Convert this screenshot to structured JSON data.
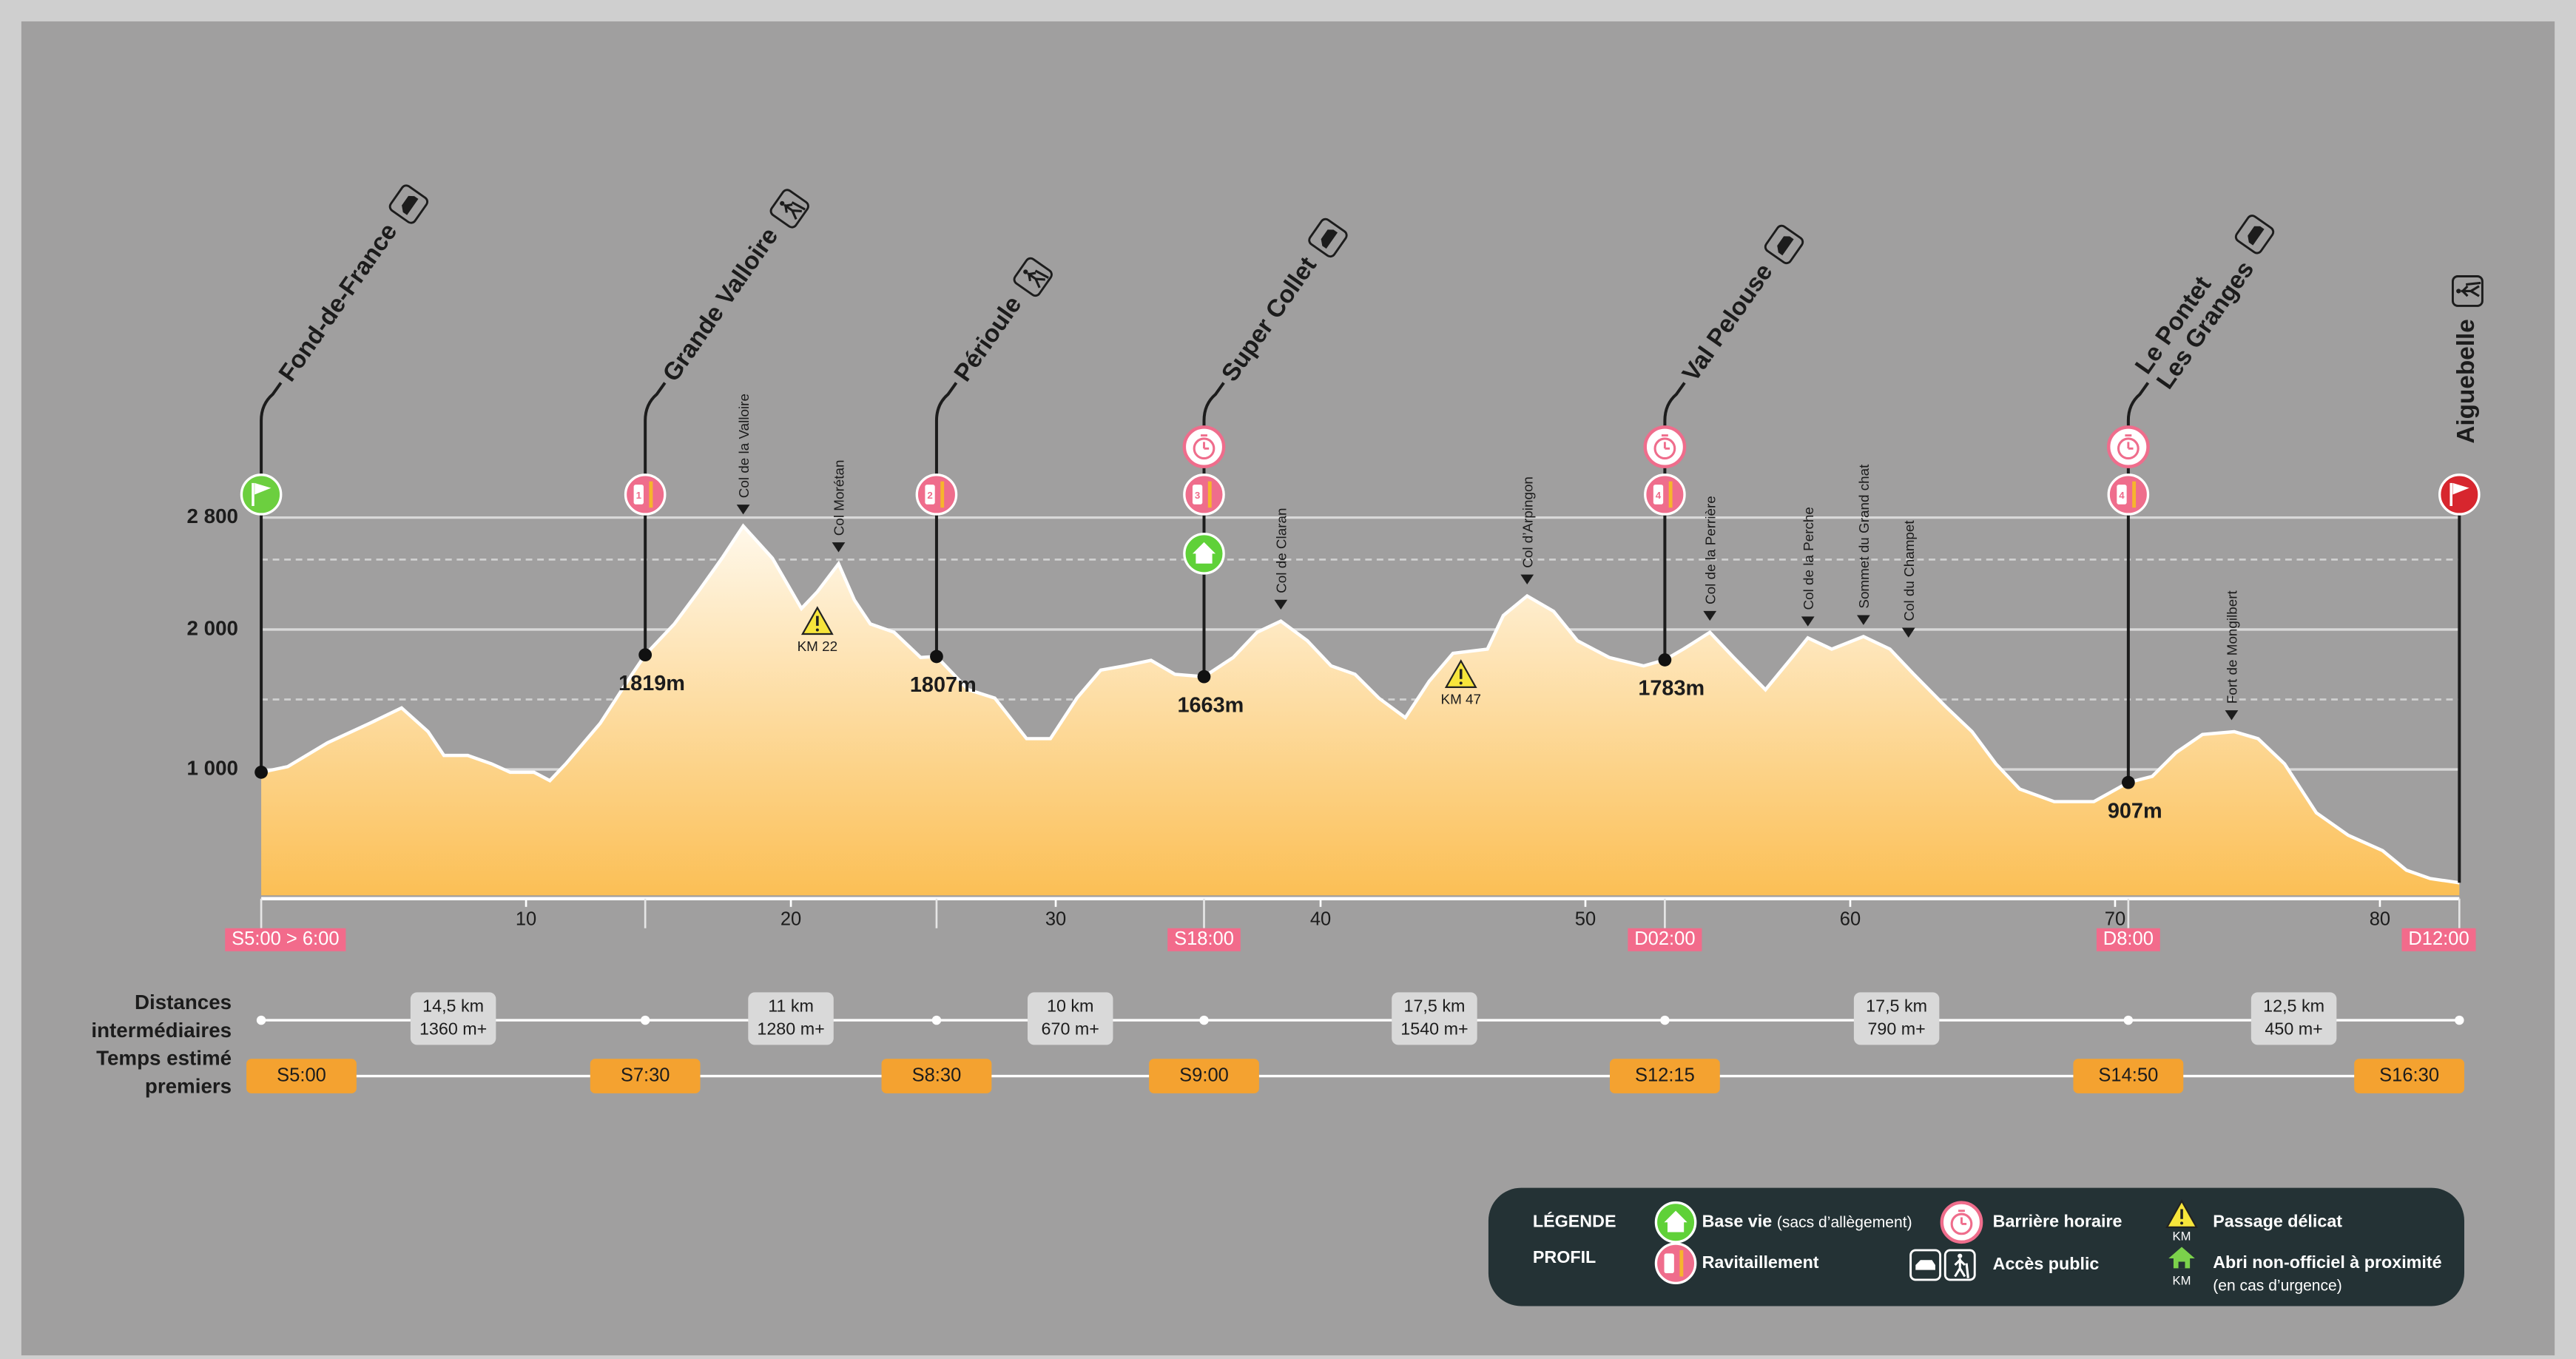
{
  "chart_data": {
    "type": "area",
    "x": [
      0,
      1.0,
      2.5,
      4.1,
      5.3,
      6.3,
      6.9,
      7.8,
      8.7,
      9.4,
      10.3,
      10.9,
      11.5,
      12.8,
      14.0,
      14.5,
      15.6,
      16.5,
      17.4,
      18.2,
      19.3,
      20.4,
      21.0,
      21.8,
      22.4,
      23.0,
      23.9,
      24.9,
      25.5,
      26.7,
      27.7,
      28.9,
      29.8,
      30.8,
      31.7,
      32.6,
      33.6,
      34.5,
      35.6,
      36.7,
      37.6,
      38.5,
      39.5,
      40.4,
      41.3,
      42.2,
      43.2,
      44.1,
      45.0,
      46.3,
      46.9,
      47.8,
      48.8,
      49.7,
      50.9,
      52.2,
      53.0,
      53.7,
      54.7,
      55.6,
      56.8,
      57.8,
      58.4,
      59.3,
      60.5,
      61.5,
      62.4,
      63.6,
      64.6,
      65.5,
      66.4,
      67.7,
      69.2,
      70.5,
      71.4,
      72.3,
      73.3,
      74.5,
      75.4,
      76.4,
      77.6,
      78.8,
      80.1,
      81.0,
      81.9,
      83.0
    ],
    "values": [
      980,
      1020,
      1190,
      1330,
      1440,
      1270,
      1100,
      1100,
      1040,
      980,
      980,
      920,
      1040,
      1330,
      1680,
      1819,
      2040,
      2270,
      2510,
      2740,
      2510,
      2150,
      2270,
      2470,
      2210,
      2040,
      1980,
      1800,
      1807,
      1570,
      1510,
      1220,
      1220,
      1510,
      1710,
      1740,
      1780,
      1680,
      1663,
      1800,
      1980,
      2060,
      1920,
      1740,
      1680,
      1510,
      1370,
      1630,
      1830,
      1860,
      2100,
      2240,
      2130,
      1920,
      1800,
      1740,
      1783,
      1860,
      1980,
      1800,
      1570,
      1800,
      1940,
      1860,
      1950,
      1860,
      1680,
      1450,
      1270,
      1040,
      860,
      770,
      770,
      907,
      950,
      1120,
      1250,
      1270,
      1220,
      1040,
      690,
      530,
      420,
      280,
      220,
      190
    ],
    "color": "#fbbf55",
    "xlim": [
      0,
      83
    ],
    "ylim": [
      100,
      3000
    ],
    "xticks": [
      10,
      20,
      30,
      40,
      50,
      60,
      70,
      80
    ],
    "yticks": [
      {
        "value": 1000,
        "label": "1 000"
      },
      {
        "value": 2000,
        "label": "2 000"
      },
      {
        "value": 2800,
        "label": "2 800"
      }
    ],
    "minor_yticks": [
      1500,
      2500
    ],
    "grid": true,
    "stations": [
      {
        "name": [
          "Fond-de-France"
        ],
        "x": 0,
        "y": 980,
        "icon": "start",
        "time": "S5:00 > 6:00",
        "access": "car"
      },
      {
        "name": [
          "Grande Valloire"
        ],
        "x": 14.5,
        "y": 1819,
        "y_label": "1819m",
        "icon": "ravito",
        "ravito": "1",
        "access": "walk"
      },
      {
        "name": [
          "Périoule"
        ],
        "x": 25.5,
        "y": 1807,
        "y_label": "1807m",
        "icon": "ravito",
        "ravito": "2",
        "access": "walk"
      },
      {
        "name": [
          "Super Collet"
        ],
        "x": 35.6,
        "y": 1663,
        "y_label": "1663m",
        "icon": "ravito",
        "ravito": "3",
        "cutoff": true,
        "base": true,
        "time": "S18:00",
        "access": "car"
      },
      {
        "name": [
          "Val Pelouse"
        ],
        "x": 53.0,
        "y": 1783,
        "y_label": "1783m",
        "icon": "ravito",
        "ravito": "4",
        "cutoff": true,
        "time": "D02:00",
        "access": "car"
      },
      {
        "name": [
          "Le Pontet",
          "Les Granges"
        ],
        "x": 70.5,
        "y": 907,
        "y_label": "907m",
        "icon": "ravito",
        "ravito": "4",
        "cutoff": true,
        "time": "D8:00",
        "access": "car"
      },
      {
        "name": [
          "Aiguebelle"
        ],
        "x": 83,
        "icon": "finish",
        "time": "D12:00",
        "access": "walk"
      }
    ],
    "summits": [
      {
        "name": "Col de la Valloire",
        "x": 18.2,
        "y": 2740
      },
      {
        "name": "Col Morétan",
        "x": 21.8,
        "y": 2470
      },
      {
        "name": "Col de Claran",
        "x": 38.5,
        "y": 2060
      },
      {
        "name": "Col d’Arpingon",
        "x": 47.8,
        "y": 2240
      },
      {
        "name": "Col de la Perrière",
        "x": 54.7,
        "y": 1980
      },
      {
        "name": "Col de la Perche",
        "x": 58.4,
        "y": 1940
      },
      {
        "name": "Sommet du Grand chat",
        "x": 60.5,
        "y": 1950
      },
      {
        "name": "Col du Champet",
        "x": 62.2,
        "y": 1860
      },
      {
        "name": "Fort de Mongilbert",
        "x": 74.4,
        "y": 1270
      }
    ],
    "warnings": [
      {
        "label": "KM 22",
        "x": 21.0,
        "y": 2050
      },
      {
        "label": "KM 47",
        "x": 45.3,
        "y": 1670
      }
    ],
    "row_labels": [
      [
        "Distances",
        "intermédiaires"
      ],
      [
        "Temps estimé",
        "premiers"
      ]
    ],
    "segments": [
      {
        "distance": "14,5 km",
        "gain": "1360 m+"
      },
      {
        "distance": "11 km",
        "gain": "1280 m+"
      },
      {
        "distance": "10 km",
        "gain": "670 m+"
      },
      {
        "distance": "17,5 km",
        "gain": "1540 m+"
      },
      {
        "distance": "17,5 km",
        "gain": "790 m+"
      },
      {
        "distance": "12,5 km",
        "gain": "450 m+"
      }
    ],
    "times": [
      "S5:00",
      "S7:30",
      "S8:30",
      "S9:00",
      "S12:15",
      "S14:50",
      "S16:30"
    ],
    "legend": {
      "title": [
        "LÉGENDE",
        "PROFIL"
      ],
      "items": [
        {
          "icon": "base",
          "label": "Base vie",
          "note": "(sacs d’allègement)"
        },
        {
          "icon": "ravito",
          "label": "Ravitaillement"
        },
        {
          "icon": "cutoff",
          "label": "Barrière horaire"
        },
        {
          "icon": "access",
          "label": "Accès public"
        },
        {
          "icon": "warning",
          "label": "Passage délicat",
          "sub": "KM"
        },
        {
          "icon": "shelter",
          "label": "Abri non-officiel à proximité",
          "note": "(en cas d’urgence)",
          "sub": "KM"
        }
      ]
    }
  }
}
